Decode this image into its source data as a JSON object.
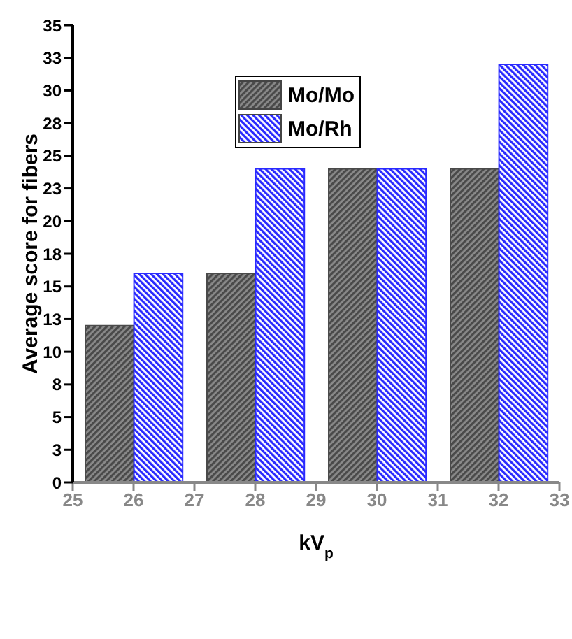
{
  "chart_data": {
    "type": "bar",
    "xlabel": "kV$_{p}$",
    "ylabel": "Average score for fibers",
    "x": [
      26,
      28,
      30,
      32
    ],
    "series": [
      {
        "name": "Mo/Mo",
        "color": "#4a4a4a",
        "values": [
          12,
          16,
          24,
          24
        ]
      },
      {
        "name": "Mo/Rh",
        "color": "#2a2aff",
        "values": [
          16,
          24,
          24,
          32
        ]
      }
    ],
    "xlim": [
      25,
      33
    ],
    "xticks": [
      25,
      26,
      27,
      28,
      29,
      30,
      31,
      32,
      33
    ],
    "ylim": [
      0,
      35
    ],
    "yticks": [
      0,
      {
        "value": 2.5,
        "label": "3"
      },
      5,
      {
        "value": 7.5,
        "label": "8"
      },
      10,
      {
        "value": 12.5,
        "label": "13"
      },
      15,
      {
        "value": 17.5,
        "label": "18"
      },
      20,
      {
        "value": 22.5,
        "label": "23"
      },
      25,
      {
        "value": 27.5,
        "label": "28"
      },
      30,
      {
        "value": 32.5,
        "label": "33"
      },
      35
    ],
    "legend": "top",
    "grid": false
  }
}
